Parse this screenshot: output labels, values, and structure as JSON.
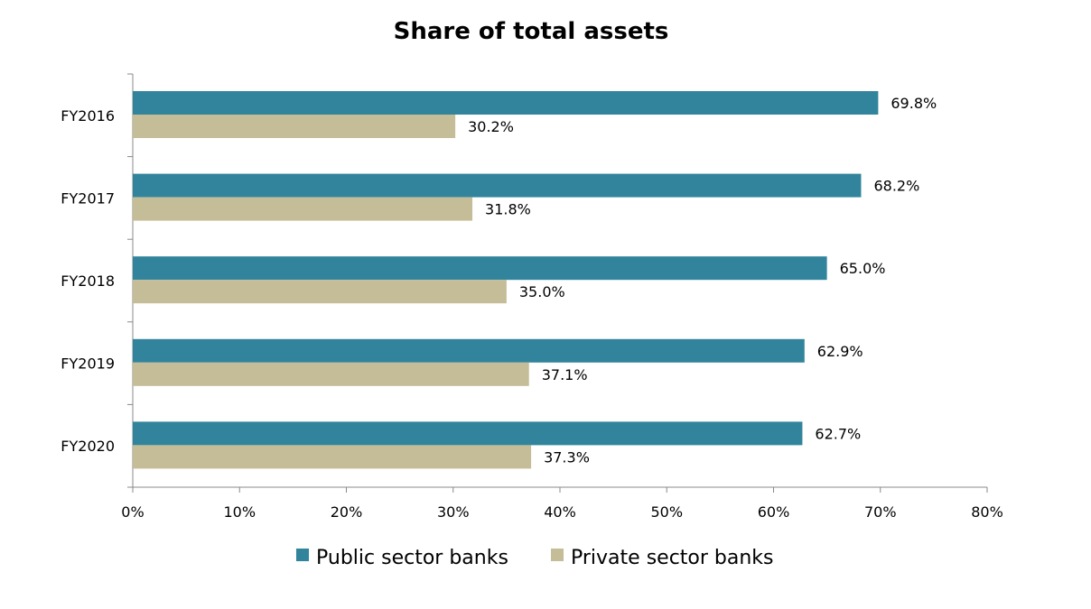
{
  "chart_data": {
    "type": "bar",
    "orientation": "horizontal",
    "title": "Share of total assets",
    "categories": [
      "FY2016",
      "FY2017",
      "FY2018",
      "FY2019",
      "FY2020"
    ],
    "series": [
      {
        "name": "Public sector banks",
        "color": "#31849B",
        "values": [
          69.8,
          68.2,
          65.0,
          62.9,
          62.7
        ],
        "labels": [
          "69.8%",
          "68.2%",
          "65.0%",
          "62.9%",
          "62.7%"
        ]
      },
      {
        "name": "Private sector banks",
        "color": "#C4BD97",
        "values": [
          30.2,
          31.8,
          35.0,
          37.1,
          37.3
        ],
        "labels": [
          "30.2%",
          "31.8%",
          "35.0%",
          "37.1%",
          "37.3%"
        ]
      }
    ],
    "xlim": [
      0,
      80
    ],
    "xticks": [
      0,
      10,
      20,
      30,
      40,
      50,
      60,
      70,
      80
    ],
    "xtick_labels": [
      "0%",
      "10%",
      "20%",
      "30%",
      "40%",
      "50%",
      "60%",
      "70%",
      "80%"
    ],
    "grid": false,
    "legend_position": "bottom"
  }
}
